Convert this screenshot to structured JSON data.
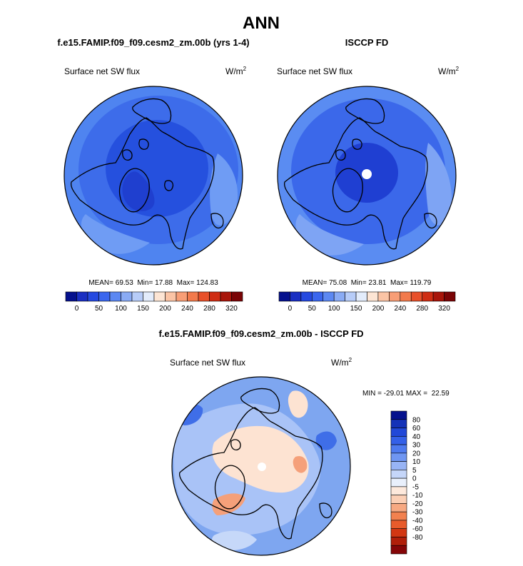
{
  "title": "ANN",
  "colors": {
    "ocean_model": "#2f5fe6",
    "ocean_obs": "#2f5fe6",
    "diff_background": "#7ea6f0",
    "coast": "#000000",
    "pole_hole": "#ffffff"
  },
  "abs_colorbar": {
    "colors": [
      "#05118d",
      "#1a2fc2",
      "#2549e0",
      "#3a66ee",
      "#5c88f2",
      "#8aabf4",
      "#b7ccf8",
      "#e3ecfb",
      "#fde5d4",
      "#fbc4a5",
      "#f89e76",
      "#f27a4c",
      "#e8502a",
      "#cf2d13",
      "#a8150a",
      "#7a0406"
    ],
    "labels": [
      "0",
      "50",
      "100",
      "150",
      "200",
      "240",
      "280",
      "320"
    ]
  },
  "diff_colorbar": {
    "colors": [
      "#05118d",
      "#1432b8",
      "#2148d8",
      "#3460e8",
      "#4e7aef",
      "#6f96f2",
      "#98b4f5",
      "#c5d6f9",
      "#e9f0fc",
      "#fde9dc",
      "#fbcfb5",
      "#f7a982",
      "#f2814f",
      "#e85b2b",
      "#d23713",
      "#b01f0a",
      "#850608"
    ],
    "labels": [
      "80",
      "60",
      "40",
      "30",
      "20",
      "10",
      "5",
      "0",
      "-5",
      "-10",
      "-20",
      "-30",
      "-40",
      "-60",
      "-80"
    ]
  },
  "panels": [
    {
      "heading": "f.e15.FAMIP.f09_f09.cesm2_zm.00b (yrs 1-4)",
      "var": "Surface net SW flux",
      "units_base": "W/m",
      "units_exp": "2",
      "stats": "MEAN= 69.53  Min= 17.88  Max= 124.83"
    },
    {
      "heading": "ISCCP FD",
      "var": "Surface net SW flux",
      "units_base": "W/m",
      "units_exp": "2",
      "stats": "MEAN= 75.08  Min= 23.81  Max= 119.79"
    }
  ],
  "diff": {
    "heading": "f.e15.FAMIP.f09_f09.cesm2_zm.00b - ISCCP FD",
    "var": "Surface net SW flux",
    "units_base": "W/m",
    "units_exp": "2",
    "minmax": "MIN = -29.01 MAX =  22.59"
  },
  "chart_data": [
    {
      "type": "heatmap",
      "projection": "north-polar-stereographic",
      "title": "f.e15.FAMIP.f09_f09.cesm2_zm.00b (yrs 1-4)",
      "variable": "Surface net SW flux",
      "units": "W/m2",
      "mean": 69.53,
      "min": 17.88,
      "max": 124.83,
      "colorbar_levels": [
        0,
        25,
        50,
        75,
        100,
        125,
        150,
        175,
        200,
        220,
        240,
        260,
        280,
        300,
        320
      ],
      "colorbar_labels": [
        "0",
        "50",
        "100",
        "150",
        "200",
        "240",
        "280",
        "320"
      ]
    },
    {
      "type": "heatmap",
      "projection": "north-polar-stereographic",
      "title": "ISCCP FD",
      "variable": "Surface net SW flux",
      "units": "W/m2",
      "mean": 75.08,
      "min": 23.81,
      "max": 119.79,
      "colorbar_levels": [
        0,
        25,
        50,
        75,
        100,
        125,
        150,
        175,
        200,
        220,
        240,
        260,
        280,
        300,
        320
      ],
      "colorbar_labels": [
        "0",
        "50",
        "100",
        "150",
        "200",
        "240",
        "280",
        "320"
      ]
    },
    {
      "type": "heatmap",
      "projection": "north-polar-stereographic",
      "title": "f.e15.FAMIP.f09_f09.cesm2_zm.00b - ISCCP FD",
      "variable": "Surface net SW flux",
      "units": "W/m2",
      "min": -29.01,
      "max": 22.59,
      "colorbar_levels": [
        -80,
        -60,
        -40,
        -30,
        -20,
        -10,
        -5,
        0,
        5,
        10,
        20,
        30,
        40,
        60,
        80
      ],
      "colorbar_labels": [
        "80",
        "60",
        "40",
        "30",
        "20",
        "10",
        "5",
        "0",
        "-5",
        "-10",
        "-20",
        "-30",
        "-40",
        "-60",
        "-80"
      ]
    }
  ]
}
